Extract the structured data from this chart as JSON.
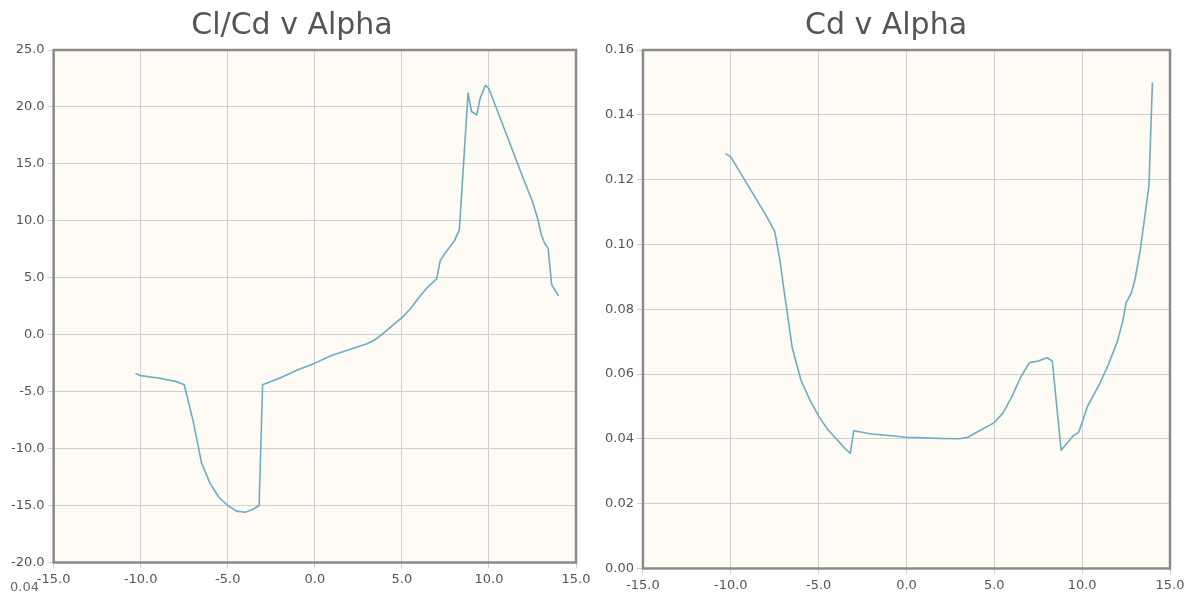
{
  "chart_data": [
    {
      "type": "line",
      "title": "Cl/Cd v Alpha",
      "xlim": [
        -15,
        15
      ],
      "xticks": [
        {
          "value": -15,
          "label": "-15.0"
        },
        {
          "value": -10,
          "label": "-10.0"
        },
        {
          "value": -5,
          "label": "-5.0"
        },
        {
          "value": 0,
          "label": "0.0"
        },
        {
          "value": 5,
          "label": "5.0"
        },
        {
          "value": 10,
          "label": "10.0"
        },
        {
          "value": 15,
          "label": "15.0"
        }
      ],
      "ylim": [
        -20,
        25
      ],
      "yticks": [
        {
          "value": -20,
          "label": "-20.0"
        },
        {
          "value": -15,
          "label": "-15.0"
        },
        {
          "value": -10,
          "label": "-10.0"
        },
        {
          "value": -5,
          "label": "-5.0"
        },
        {
          "value": 0,
          "label": "0.0"
        },
        {
          "value": 5,
          "label": "5.0"
        },
        {
          "value": 10,
          "label": "10.0"
        },
        {
          "value": 15,
          "label": "15.0"
        },
        {
          "value": 20,
          "label": "20.0"
        },
        {
          "value": 25,
          "label": "25.0"
        }
      ],
      "grid": true,
      "marker": "none",
      "annotations": [
        "0.04"
      ],
      "series": [
        {
          "color": "#6aaec4",
          "x": [
            -10.3,
            -10,
            -9,
            -8,
            -7.5,
            -7,
            -6.5,
            -6,
            -5.5,
            -5,
            -4.5,
            -4,
            -3.5,
            -3.2,
            -3,
            -2,
            -1,
            0,
            1,
            2,
            3,
            3.5,
            4,
            5,
            5.5,
            6,
            6.5,
            7,
            7.2,
            7.5,
            8,
            8.3,
            8.8,
            9,
            9.3,
            9.5,
            9.8,
            10,
            10.5,
            11,
            11.5,
            12,
            12.5,
            12.8,
            13,
            13.2,
            13.4,
            13.6,
            13.8,
            14
          ],
          "values": [
            -3.4,
            -3.6,
            -3.8,
            -4.1,
            -4.4,
            -7.5,
            -11.3,
            -13.1,
            -14.3,
            -15,
            -15.5,
            -15.6,
            -15.3,
            -15,
            -4.4,
            -3.8,
            -3.1,
            -2.5,
            -1.8,
            -1.3,
            -0.8,
            -0.4,
            0.2,
            1.5,
            2.3,
            3.3,
            4.2,
            4.9,
            6.5,
            7.2,
            8.2,
            9.2,
            21.2,
            19.6,
            19.3,
            20.8,
            21.9,
            21.6,
            19.6,
            17.6,
            15.6,
            13.6,
            11.7,
            10.2,
            8.8,
            8,
            7.6,
            4.4,
            3.9,
            3.4
          ]
        }
      ]
    },
    {
      "type": "line",
      "title": "Cd v Alpha",
      "xlim": [
        -15,
        15
      ],
      "xticks": [
        {
          "value": -15,
          "label": "-15.0"
        },
        {
          "value": -10,
          "label": "-10.0"
        },
        {
          "value": -5,
          "label": "-5.0"
        },
        {
          "value": 0,
          "label": "0.0"
        },
        {
          "value": 5,
          "label": "5.0"
        },
        {
          "value": 10,
          "label": "10.0"
        },
        {
          "value": 15,
          "label": "15.0"
        }
      ],
      "ylim": [
        0,
        0.16
      ],
      "yticks": [
        {
          "value": 0,
          "label": "0.00"
        },
        {
          "value": 0.02,
          "label": "0.02"
        },
        {
          "value": 0.04,
          "label": "0.04"
        },
        {
          "value": 0.06,
          "label": "0.06"
        },
        {
          "value": 0.08,
          "label": "0.08"
        },
        {
          "value": 0.1,
          "label": "0.10"
        },
        {
          "value": 0.12,
          "label": "0.12"
        },
        {
          "value": 0.14,
          "label": "0.14"
        },
        {
          "value": 0.16,
          "label": "0.16"
        }
      ],
      "grid": true,
      "marker": "none",
      "series": [
        {
          "color": "#6aaec4",
          "x": [
            -10.3,
            -10,
            -9,
            -8,
            -7.5,
            -7.2,
            -7,
            -6.5,
            -6,
            -5.5,
            -5,
            -4.5,
            -4,
            -3.5,
            -3.2,
            -3,
            -2,
            -1,
            0,
            1,
            2,
            3,
            3.5,
            4,
            5,
            5.5,
            6,
            6.5,
            7,
            7.5,
            8,
            8.3,
            8.8,
            9.2,
            9.5,
            9.8,
            10,
            10.3,
            11,
            11.5,
            12,
            12.3,
            12.5,
            12.8,
            13,
            13.3,
            13.6,
            13.8,
            14
          ],
          "values": [
            0.128,
            0.127,
            0.118,
            0.109,
            0.104,
            0.095,
            0.087,
            0.068,
            0.058,
            0.052,
            0.047,
            0.043,
            0.04,
            0.037,
            0.0355,
            0.0425,
            0.0415,
            0.041,
            0.0405,
            0.0403,
            0.0401,
            0.04,
            0.0405,
            0.042,
            0.045,
            0.048,
            0.053,
            0.059,
            0.0635,
            0.064,
            0.065,
            0.064,
            0.0365,
            0.039,
            0.041,
            0.042,
            0.045,
            0.05,
            0.057,
            0.063,
            0.07,
            0.076,
            0.082,
            0.085,
            0.089,
            0.098,
            0.11,
            0.118,
            0.15
          ]
        }
      ]
    }
  ]
}
